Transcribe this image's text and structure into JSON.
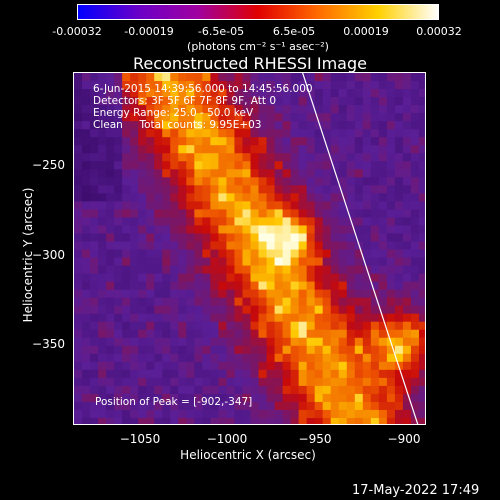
{
  "colorbar": {
    "ticks": [
      "-0.00032",
      "-0.00019",
      "-6.5e-05",
      "6.5e-05",
      "0.00019",
      "0.00032"
    ],
    "units": "(photons cm⁻² s⁻¹ asec⁻²)"
  },
  "title": "Reconstructed RHESSI Image",
  "info": {
    "line1": "6-Jun-2015 14:39:56.000 to 14:45:56.000",
    "line2": "Detectors: 3F 5F 6F 7F 8F 9F, Att 0",
    "line3": "Energy Range: 25.0 - 50.0 keV",
    "line4": "Clean     Total counts: 9.95E+03",
    "peak": "Position of Peak = [-902,-347]"
  },
  "axes": {
    "xlabel": "Heliocentric X (arcsec)",
    "ylabel": "Heliocentric Y (arcsec)",
    "xticks": [
      "−1050",
      "−1000",
      "−950",
      "−900"
    ],
    "yticks": [
      "−250",
      "−300",
      "−350"
    ],
    "xlim": [
      -1080,
      -888
    ],
    "ylim": [
      -395,
      -203
    ]
  },
  "colors": {
    "background": "#000000",
    "limb": "#ffffff"
  },
  "footer": {
    "timestamp": "17-May-2022 17:49"
  }
}
